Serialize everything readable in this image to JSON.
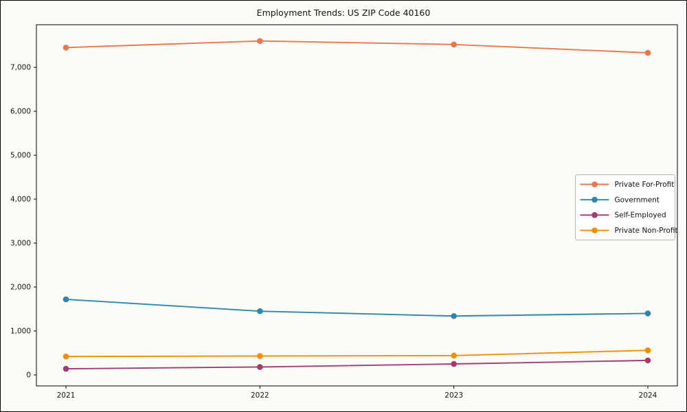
{
  "chart_data": {
    "type": "line",
    "title": "Employment Trends: US ZIP Code 40160",
    "xlabel": "",
    "ylabel": "",
    "categories": [
      "2021",
      "2022",
      "2023",
      "2024"
    ],
    "series": [
      {
        "name": "Private For-Profit",
        "color": "#E8784C",
        "values": [
          7450,
          7600,
          7520,
          7330
        ]
      },
      {
        "name": "Government",
        "color": "#2E86AB",
        "values": [
          1720,
          1450,
          1340,
          1400
        ]
      },
      {
        "name": "Self-Employed",
        "color": "#A23B72",
        "values": [
          140,
          180,
          250,
          330
        ]
      },
      {
        "name": "Private Non-Profit",
        "color": "#F18F01",
        "values": [
          420,
          430,
          440,
          560
        ]
      }
    ],
    "ylim": [
      -250,
      7970
    ],
    "yticks": [
      0,
      1000,
      2000,
      3000,
      4000,
      5000,
      6000,
      7000
    ],
    "ytick_labels": [
      "0",
      "1,000",
      "2,000",
      "3,000",
      "4,000",
      "5,000",
      "6,000",
      "7,000"
    ],
    "grid": false,
    "legend_position": "middle-right",
    "marker": "circle",
    "axis_color": "#000000",
    "legend_border_color": "#b3b3b3",
    "legend_background": "#ffffff"
  }
}
